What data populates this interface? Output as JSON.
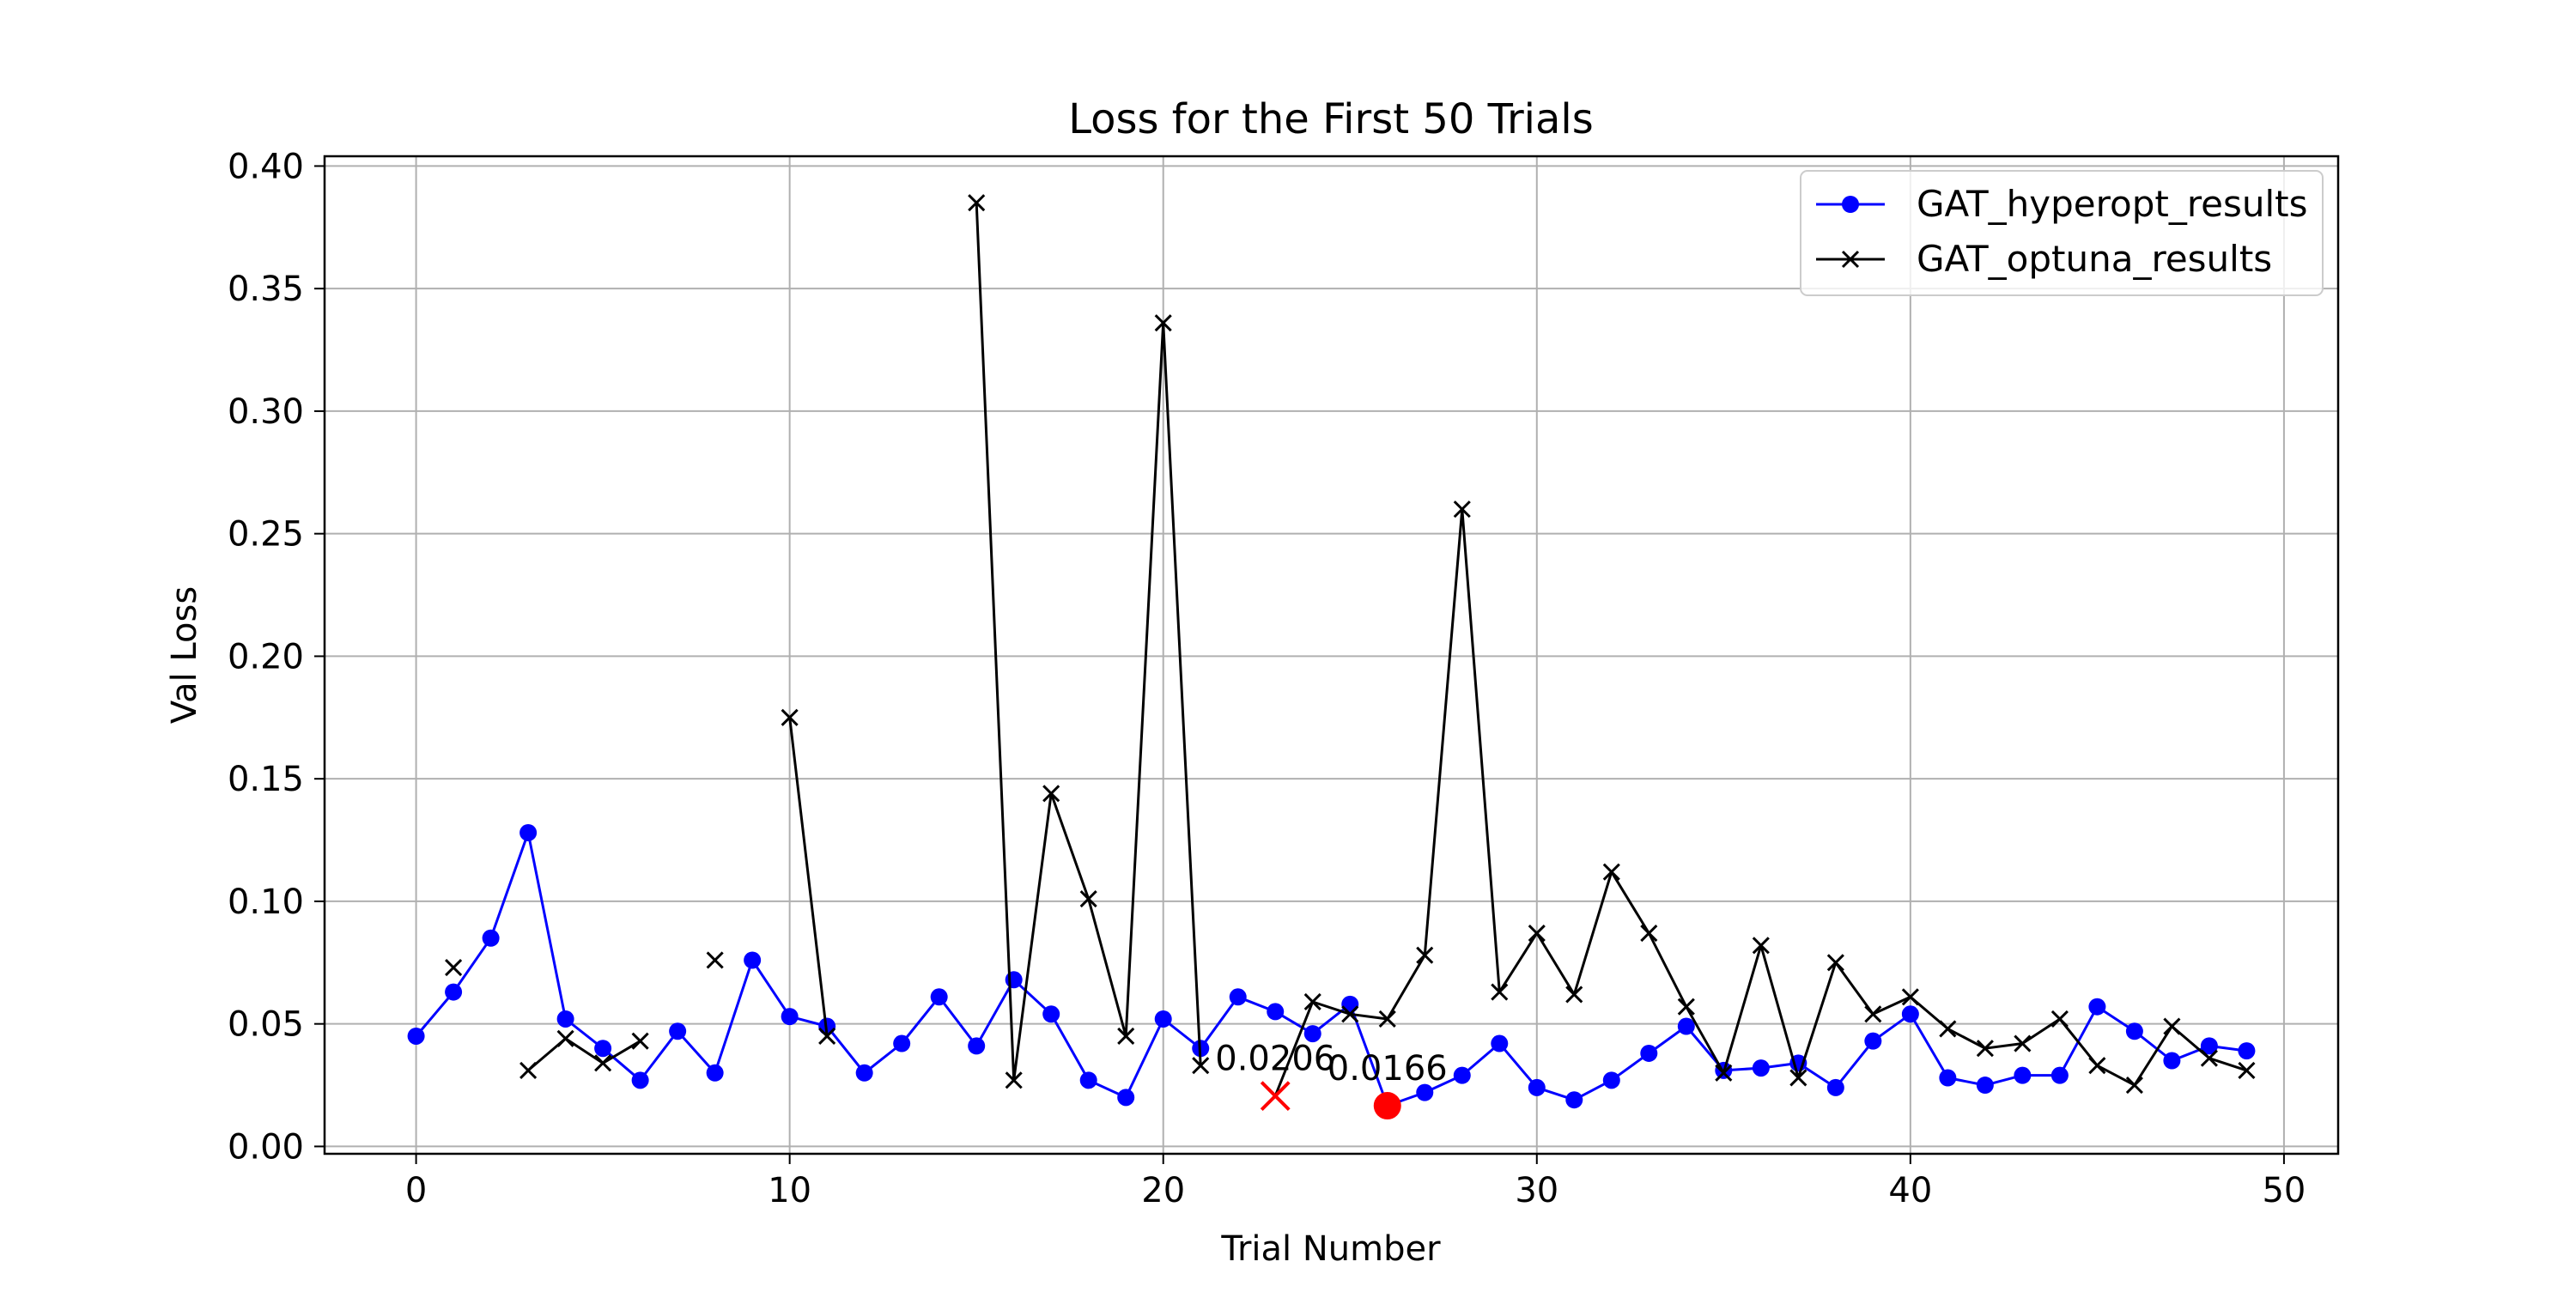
{
  "chart_data": {
    "type": "line",
    "title": "Loss for the First 50 Trials",
    "xlabel": "Trial Number",
    "ylabel": "Val Loss",
    "xlim": [
      -2.45,
      51.45
    ],
    "ylim": [
      -0.003,
      0.404
    ],
    "xticks": [
      0,
      10,
      20,
      30,
      40,
      50
    ],
    "yticks": [
      0.0,
      0.05,
      0.1,
      0.15,
      0.2,
      0.25,
      0.3,
      0.35,
      0.4
    ],
    "grid": true,
    "legend_position": "top-right",
    "series": [
      {
        "name": "GAT_hyperopt_results",
        "color": "#0000ff",
        "marker": "circle",
        "x": [
          0,
          1,
          2,
          3,
          4,
          5,
          6,
          7,
          8,
          9,
          10,
          11,
          12,
          13,
          14,
          15,
          16,
          17,
          18,
          19,
          20,
          21,
          22,
          23,
          24,
          25,
          26,
          27,
          28,
          29,
          30,
          31,
          32,
          33,
          34,
          35,
          36,
          37,
          38,
          39,
          40,
          41,
          42,
          43,
          44,
          45,
          46,
          47,
          48,
          49
        ],
        "values": [
          0.045,
          0.063,
          0.085,
          0.128,
          0.052,
          0.04,
          0.027,
          0.047,
          0.03,
          0.076,
          0.053,
          0.049,
          0.03,
          0.042,
          0.061,
          0.041,
          0.068,
          0.054,
          0.027,
          0.02,
          0.052,
          0.04,
          0.061,
          0.055,
          0.046,
          0.058,
          0.0166,
          0.022,
          0.029,
          0.042,
          0.024,
          0.019,
          0.027,
          0.038,
          0.049,
          0.031,
          0.032,
          0.034,
          0.024,
          0.043,
          0.054,
          0.028,
          0.025,
          0.029,
          0.029,
          0.057,
          0.047,
          0.035,
          0.041,
          0.039
        ]
      },
      {
        "name": "GAT_optuna_results",
        "color": "#000000",
        "marker": "x",
        "x": [
          0,
          1,
          2,
          3,
          4,
          5,
          6,
          7,
          8,
          9,
          10,
          11,
          12,
          13,
          14,
          15,
          16,
          17,
          18,
          19,
          20,
          21,
          22,
          23,
          24,
          25,
          26,
          27,
          28,
          29,
          30,
          31,
          32,
          33,
          34,
          35,
          36,
          37,
          38,
          39,
          40,
          41,
          42,
          43,
          44,
          45,
          46,
          47,
          48,
          49
        ],
        "values": [
          null,
          0.073,
          null,
          0.031,
          0.044,
          0.034,
          0.043,
          null,
          0.076,
          null,
          0.175,
          0.045,
          null,
          null,
          null,
          0.385,
          0.027,
          0.144,
          0.101,
          0.045,
          0.336,
          0.033,
          null,
          0.0206,
          0.059,
          0.054,
          0.052,
          0.078,
          0.26,
          0.063,
          0.087,
          0.062,
          0.112,
          0.087,
          0.057,
          0.03,
          0.082,
          0.028,
          0.075,
          0.054,
          0.061,
          0.048,
          0.04,
          0.042,
          0.052,
          0.033,
          0.025,
          0.049,
          0.036,
          0.031
        ]
      }
    ],
    "highlights": [
      {
        "series": "GAT_optuna_results",
        "x": 23,
        "y": 0.0206,
        "label": "0.0206",
        "color": "#ff0000",
        "marker": "x"
      },
      {
        "series": "GAT_hyperopt_results",
        "x": 26,
        "y": 0.0166,
        "label": "0.0166",
        "color": "#ff0000",
        "marker": "circle"
      }
    ]
  }
}
